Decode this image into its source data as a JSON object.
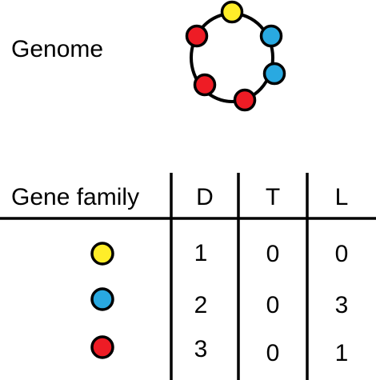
{
  "genome": {
    "label": "Genome",
    "ring": [
      {
        "family": "yellow"
      },
      {
        "family": "blue"
      },
      {
        "family": "blue"
      },
      {
        "family": "red"
      },
      {
        "family": "red"
      },
      {
        "family": "red"
      }
    ]
  },
  "table": {
    "headers": [
      "Gene family",
      "D",
      "T",
      "L"
    ],
    "rows": [
      {
        "family": "yellow",
        "values": [
          "1",
          "0",
          "0"
        ]
      },
      {
        "family": "blue",
        "values": [
          "2",
          "0",
          "3"
        ]
      },
      {
        "family": "red",
        "values": [
          "3",
          "0",
          "1"
        ]
      }
    ]
  },
  "colors": {
    "yellow": "#FFED29",
    "blue": "#29A9E1",
    "red": "#EE1C25",
    "ink": "#000000"
  }
}
